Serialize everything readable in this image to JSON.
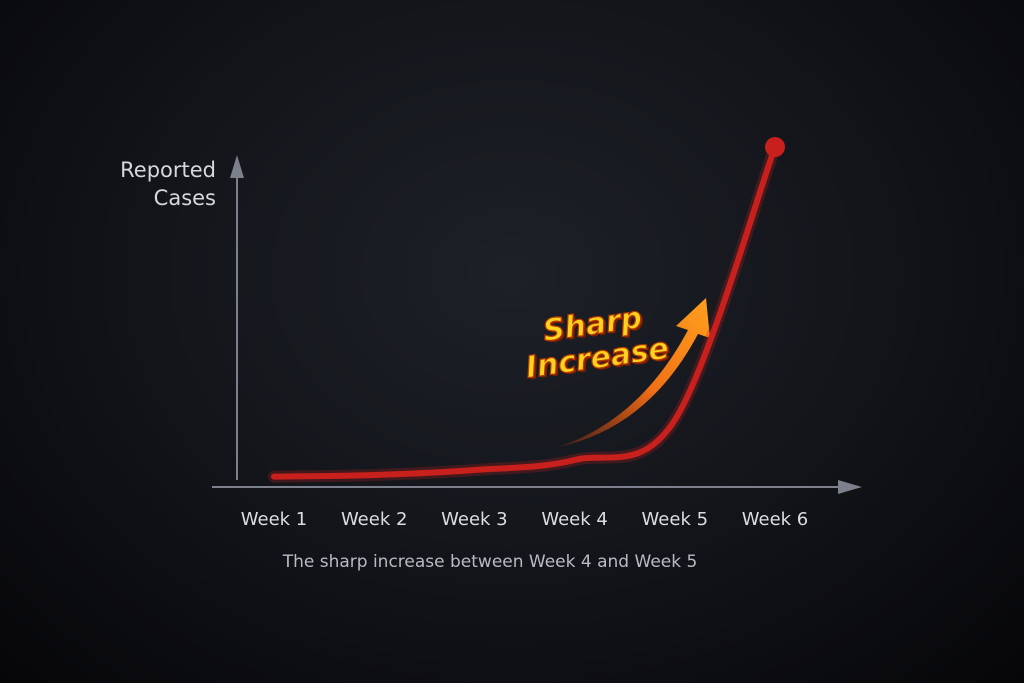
{
  "chart_data": {
    "type": "line",
    "y_label": "Reported Cases",
    "annotation": "Sharp Increase",
    "caption": "The sharp increase between Week 4 and Week 5",
    "categories": [
      "Week 1",
      "Week 2",
      "Week 3",
      "Week 4",
      "Week 5",
      "Week 6"
    ],
    "values": [
      1,
      1.5,
      3,
      6,
      18,
      100
    ],
    "color": "#c8201c",
    "ylim": [
      0,
      100
    ]
  }
}
